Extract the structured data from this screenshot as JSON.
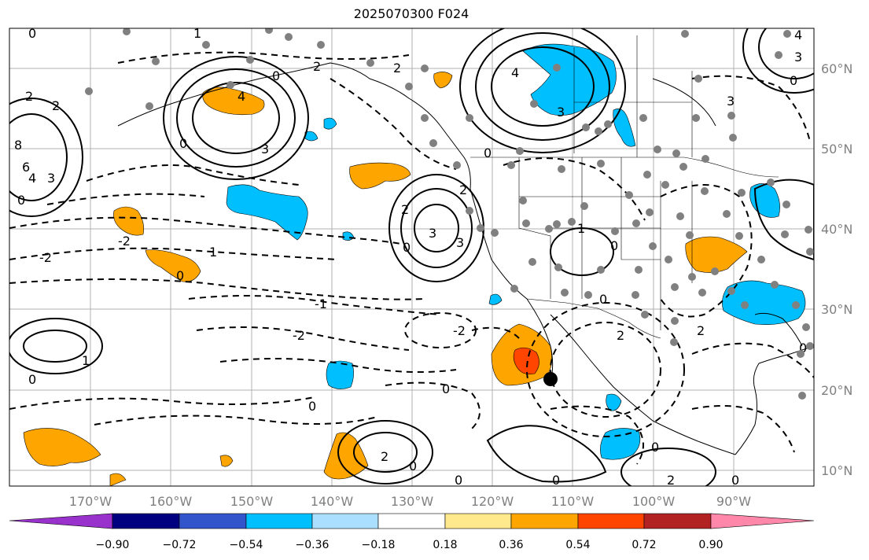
{
  "title": "2025070300 F024",
  "lat_labels": [
    "60°N",
    "50°N",
    "40°N",
    "30°N",
    "20°N",
    "10°N"
  ],
  "lon_labels": [
    "170°W",
    "160°W",
    "150°W",
    "140°W",
    "130°W",
    "120°W",
    "110°W",
    "100°W",
    "90°W"
  ],
  "colorbar": {
    "colors": [
      "#9932cc",
      "#000080",
      "#3355cc",
      "#00bfff",
      "#aadfff",
      "#ffffff",
      "#ffe98c",
      "#ffa500",
      "#ff4500",
      "#b22222",
      "#ff88aa"
    ],
    "tick_labels": [
      "−0.90",
      "−0.72",
      "−0.54",
      "−0.36",
      "−0.18",
      "0.18",
      "0.36",
      "0.54",
      "0.72",
      "0.90"
    ]
  },
  "map": {
    "extent_lon": [
      -180,
      -80
    ],
    "extent_lat": [
      8,
      65
    ],
    "gridline_lons": [
      -170,
      -160,
      -150,
      -140,
      -130,
      -120,
      -110,
      -100,
      -90
    ],
    "gridline_lats": [
      10,
      20,
      30,
      40,
      50,
      60
    ],
    "contour_labels": [
      "0",
      "1",
      "2",
      "-2",
      "3",
      "4",
      "-1"
    ],
    "marker_color_stations": "#808080",
    "marker_color_highlight": "#000000"
  }
}
